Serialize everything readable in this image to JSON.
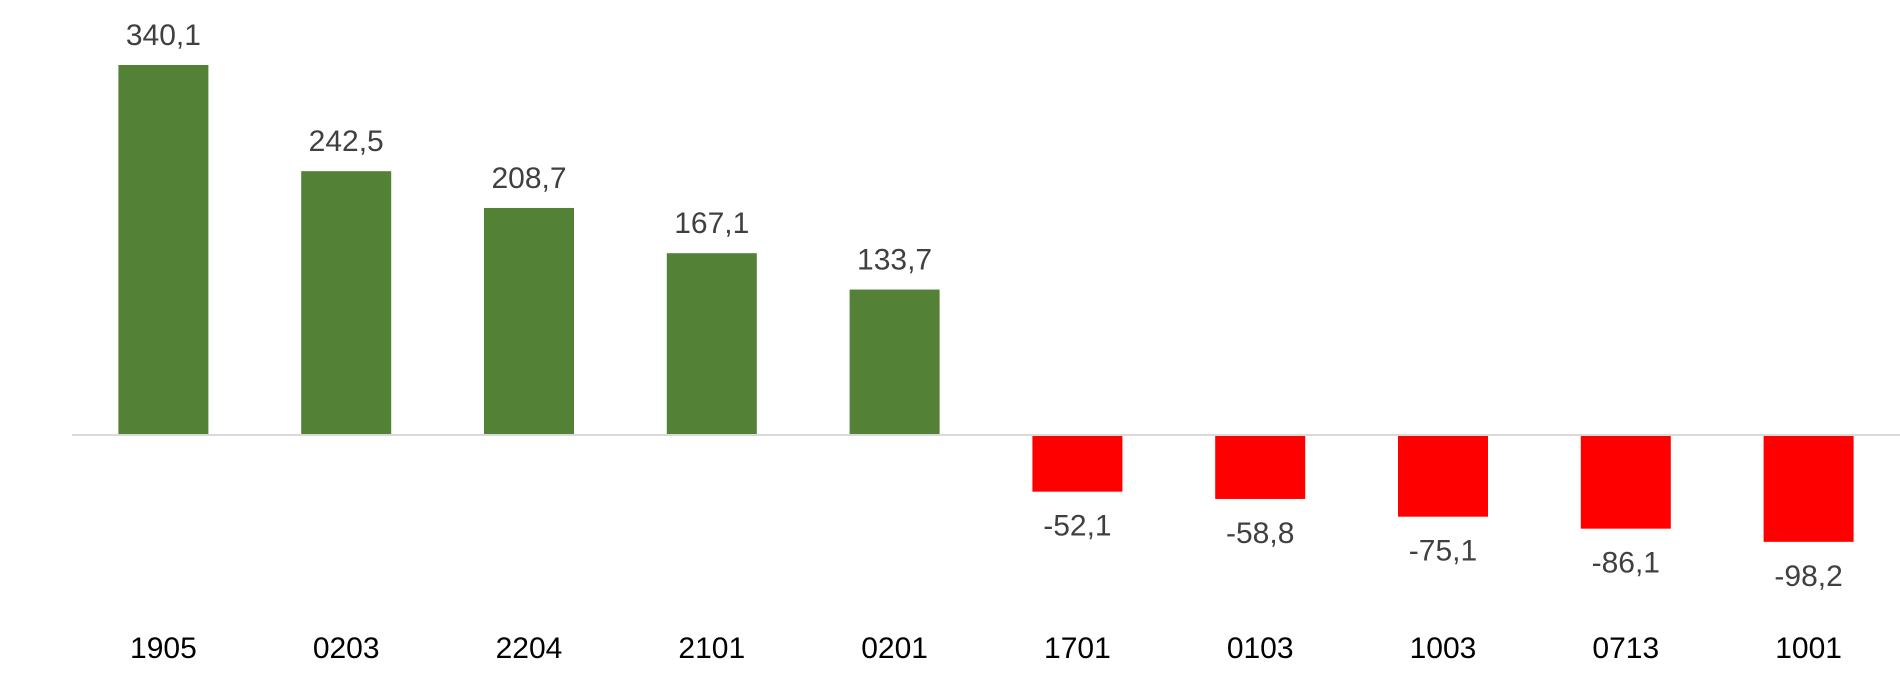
{
  "chart_data": {
    "type": "bar",
    "categories": [
      "1905",
      "0203",
      "2204",
      "2101",
      "0201",
      "1701",
      "0103",
      "1003",
      "0713",
      "1001"
    ],
    "values": [
      340.1,
      242.5,
      208.7,
      167.1,
      133.7,
      -52.1,
      -58.8,
      -75.1,
      -86.1,
      -98.2
    ],
    "value_labels": [
      "340,1",
      "242,5",
      "208,7",
      "167,1",
      "133,7",
      "-52,1",
      "-58,8",
      "-75,1",
      "-86,1",
      "-98,2"
    ],
    "ylim": [
      -110,
      360
    ],
    "grid": false,
    "legend": "none",
    "colors": {
      "positive": "#538135",
      "negative": "#ff0000",
      "axis": "#d9d9d9"
    }
  }
}
